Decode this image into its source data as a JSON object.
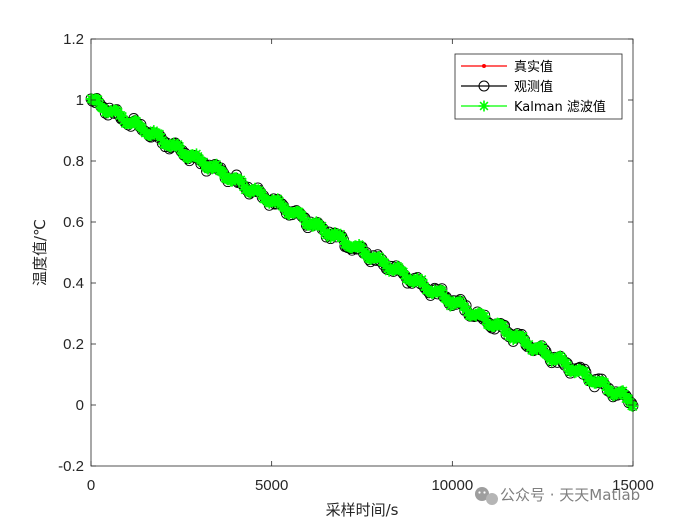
{
  "chart_data": {
    "type": "line",
    "title": "",
    "xlabel": "采样时间/s",
    "ylabel": "温度值/℃",
    "xlim": [
      0,
      15000
    ],
    "ylim": [
      -0.2,
      1.2
    ],
    "xticks": [
      0,
      5000,
      10000,
      15000
    ],
    "yticks": [
      -0.2,
      0,
      0.2,
      0.4,
      0.6,
      0.8,
      1,
      1.2
    ],
    "xtick_labels": [
      "0",
      "5000",
      "10000",
      "15000"
    ],
    "ytick_labels": [
      "-0.2",
      "0",
      "0.2",
      "0.4",
      "0.6",
      "0.8",
      "1",
      "1.2"
    ],
    "grid": false,
    "legend_position": "top-right",
    "series": [
      {
        "name": "真实值",
        "color": "#ff0000",
        "marker": "dot",
        "x": [
          0,
          15000
        ],
        "y": [
          1.0,
          0.01
        ]
      },
      {
        "name": "观测值",
        "color": "#000000",
        "marker": "circle",
        "x": [
          0,
          15000
        ],
        "y": [
          1.0,
          0.01
        ]
      },
      {
        "name": "Kalman 滤波值",
        "color": "#00ff00",
        "marker": "asterisk",
        "x": [
          0,
          15000
        ],
        "y": [
          1.0,
          0.01
        ]
      }
    ]
  },
  "watermark": {
    "text": "公众号 · 天天Matlab",
    "icon": "wechat-icon"
  }
}
